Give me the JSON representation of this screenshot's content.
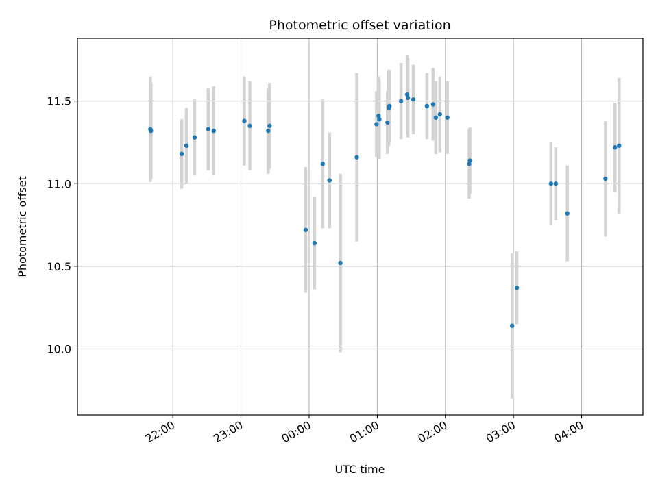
{
  "chart_data": {
    "type": "scatter",
    "title": "Photometric offset variation",
    "xlabel": "UTC time",
    "ylabel": "Photometric offset",
    "x_unit": "UTC hours since 00:00 (negative = previous evening)",
    "xlim": [
      -3.4,
      4.9
    ],
    "ylim": [
      9.6,
      11.88
    ],
    "x_ticks": [
      {
        "value": -2,
        "label": "22:00"
      },
      {
        "value": -1,
        "label": "23:00"
      },
      {
        "value": 0,
        "label": "00:00"
      },
      {
        "value": 1,
        "label": "01:00"
      },
      {
        "value": 2,
        "label": "02:00"
      },
      {
        "value": 3,
        "label": "03:00"
      },
      {
        "value": 4,
        "label": "04:00"
      }
    ],
    "y_ticks": [
      {
        "value": 10.0,
        "label": "10.0"
      },
      {
        "value": 10.5,
        "label": "10.5"
      },
      {
        "value": 11.0,
        "label": "11.0"
      },
      {
        "value": 11.5,
        "label": "11.5"
      }
    ],
    "grid": true,
    "colors": {
      "point": "#1f77b4",
      "errorbar": "#d3d3d3",
      "grid": "#b0b0b0",
      "axes": "#000000"
    },
    "series": [
      {
        "points": [
          {
            "x": -2.33,
            "y": 11.33,
            "err": 0.32
          },
          {
            "x": -2.32,
            "y": 11.32,
            "err": 0.29
          },
          {
            "x": -1.87,
            "y": 11.18,
            "err": 0.21
          },
          {
            "x": -1.8,
            "y": 11.23,
            "err": 0.23
          },
          {
            "x": -1.68,
            "y": 11.28,
            "err": 0.23
          },
          {
            "x": -1.48,
            "y": 11.33,
            "err": 0.25
          },
          {
            "x": -1.4,
            "y": 11.32,
            "err": 0.27
          },
          {
            "x": -0.95,
            "y": 11.38,
            "err": 0.27
          },
          {
            "x": -0.87,
            "y": 11.35,
            "err": 0.27
          },
          {
            "x": -0.6,
            "y": 11.32,
            "err": 0.26
          },
          {
            "x": -0.58,
            "y": 11.35,
            "err": 0.26
          },
          {
            "x": -0.05,
            "y": 10.72,
            "err": 0.38
          },
          {
            "x": 0.08,
            "y": 10.64,
            "err": 0.28
          },
          {
            "x": 0.2,
            "y": 11.12,
            "err": 0.39
          },
          {
            "x": 0.3,
            "y": 11.02,
            "err": 0.29
          },
          {
            "x": 0.46,
            "y": 10.52,
            "err": 0.54
          },
          {
            "x": 0.7,
            "y": 11.16,
            "err": 0.51
          },
          {
            "x": 0.99,
            "y": 11.36,
            "err": 0.2
          },
          {
            "x": 1.02,
            "y": 11.41,
            "err": 0.24
          },
          {
            "x": 1.03,
            "y": 11.39,
            "err": 0.24
          },
          {
            "x": 1.15,
            "y": 11.37,
            "err": 0.19
          },
          {
            "x": 1.17,
            "y": 11.46,
            "err": 0.23
          },
          {
            "x": 1.18,
            "y": 11.47,
            "err": 0.22
          },
          {
            "x": 1.35,
            "y": 11.5,
            "err": 0.23
          },
          {
            "x": 1.44,
            "y": 11.54,
            "err": 0.24
          },
          {
            "x": 1.45,
            "y": 11.52,
            "err": 0.24
          },
          {
            "x": 1.53,
            "y": 11.51,
            "err": 0.21
          },
          {
            "x": 1.73,
            "y": 11.47,
            "err": 0.2
          },
          {
            "x": 1.82,
            "y": 11.48,
            "err": 0.22
          },
          {
            "x": 1.86,
            "y": 11.4,
            "err": 0.22
          },
          {
            "x": 1.92,
            "y": 11.42,
            "err": 0.23
          },
          {
            "x": 2.03,
            "y": 11.4,
            "err": 0.22
          },
          {
            "x": 2.35,
            "y": 11.12,
            "err": 0.21
          },
          {
            "x": 2.36,
            "y": 11.14,
            "err": 0.2
          },
          {
            "x": 2.98,
            "y": 10.14,
            "err": 0.44
          },
          {
            "x": 3.05,
            "y": 10.37,
            "err": 0.22
          },
          {
            "x": 3.55,
            "y": 11.0,
            "err": 0.25
          },
          {
            "x": 3.62,
            "y": 11.0,
            "err": 0.22
          },
          {
            "x": 3.79,
            "y": 10.82,
            "err": 0.29
          },
          {
            "x": 4.35,
            "y": 11.03,
            "err": 0.35
          },
          {
            "x": 4.49,
            "y": 11.22,
            "err": 0.27
          },
          {
            "x": 4.55,
            "y": 11.23,
            "err": 0.41
          }
        ]
      }
    ]
  }
}
